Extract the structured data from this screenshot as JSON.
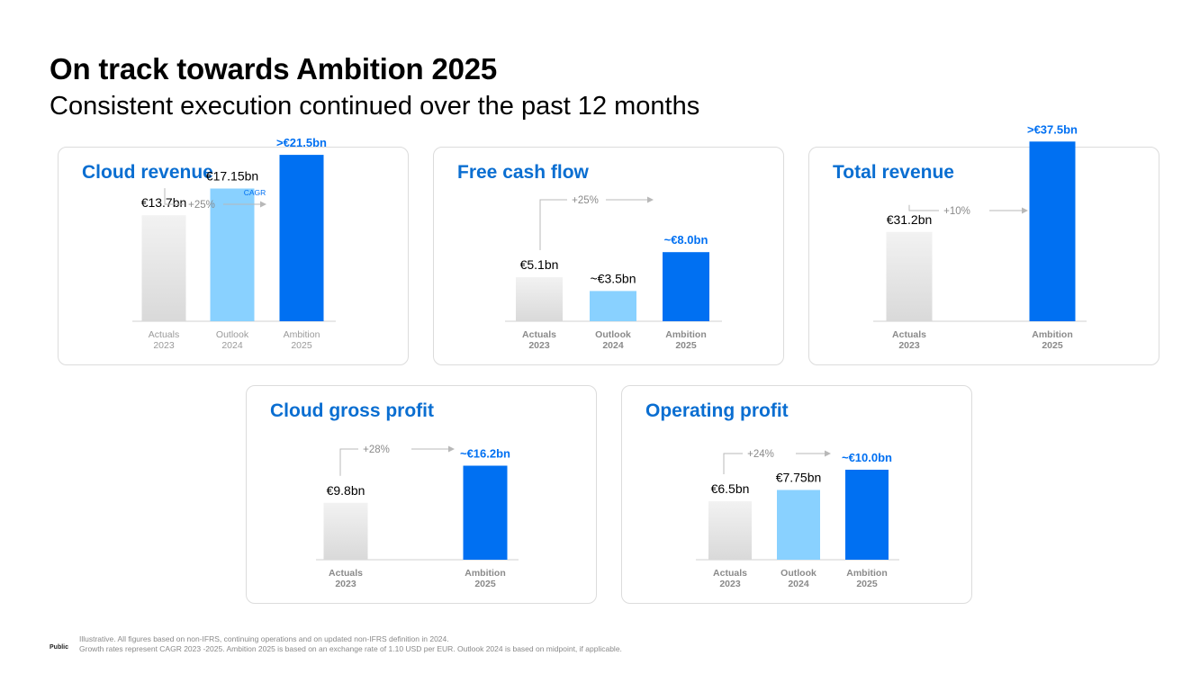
{
  "page": {
    "title": "On track towards Ambition 2025",
    "subtitle": "Consistent execution continued over the past 12 months"
  },
  "colors": {
    "accent": "#0a6ed1",
    "actuals_top": "#f2f2f2",
    "actuals_bottom": "#d9d9d9",
    "outlook": "#89d1ff",
    "ambition": "#0070f2",
    "axis": "#d0d0d0",
    "arrow": "#b8b8b8",
    "muted_label": "#9a9a9a",
    "bold_label": "#8a8a8a"
  },
  "chart_data": [
    {
      "type": "bar",
      "id": "cloud-revenue",
      "title": "Cloud revenue",
      "unit": "€bn",
      "categories": [
        [
          "Actuals",
          "2023"
        ],
        [
          "Outlook",
          "2024"
        ],
        [
          "Ambition",
          "2025"
        ]
      ],
      "values": [
        13.7,
        17.15,
        21.5
      ],
      "value_labels": [
        "€13.7bn",
        "€17.15bn",
        ">€21.5bn"
      ],
      "kinds": [
        "actual",
        "outlook",
        "ambition"
      ],
      "growth": "+25%",
      "growth_note": "CAGR",
      "category_style": "light"
    },
    {
      "type": "bar",
      "id": "free-cash-flow",
      "title": "Free cash flow",
      "unit": "€bn",
      "categories": [
        [
          "Actuals",
          "2023"
        ],
        [
          "Outlook",
          "2024"
        ],
        [
          "Ambition",
          "2025"
        ]
      ],
      "values": [
        5.1,
        3.5,
        8.0
      ],
      "value_labels": [
        "€5.1bn",
        "~€3.5bn",
        "~€8.0bn"
      ],
      "kinds": [
        "actual",
        "outlook",
        "ambition"
      ],
      "growth": "+25%",
      "category_style": "bold"
    },
    {
      "type": "bar",
      "id": "total-revenue",
      "title": "Total revenue",
      "unit": "€bn",
      "categories": [
        [
          "Actuals",
          "2023"
        ],
        [
          "Ambition",
          "2025"
        ]
      ],
      "values": [
        31.2,
        37.5
      ],
      "value_labels": [
        "€31.2bn",
        ">€37.5bn"
      ],
      "kinds": [
        "actual",
        "ambition"
      ],
      "growth": "+10%",
      "category_style": "bold"
    },
    {
      "type": "bar",
      "id": "cloud-gross-profit",
      "title": "Cloud gross profit",
      "unit": "€bn",
      "categories": [
        [
          "Actuals",
          "2023"
        ],
        [
          "Ambition",
          "2025"
        ]
      ],
      "values": [
        9.8,
        16.2
      ],
      "value_labels": [
        "€9.8bn",
        "~€16.2bn"
      ],
      "kinds": [
        "actual",
        "ambition"
      ],
      "growth": "+28%",
      "category_style": "bold"
    },
    {
      "type": "bar",
      "id": "operating-profit",
      "title": "Operating profit",
      "unit": "€bn",
      "categories": [
        [
          "Actuals",
          "2023"
        ],
        [
          "Outlook",
          "2024"
        ],
        [
          "Ambition",
          "2025"
        ]
      ],
      "values": [
        6.5,
        7.75,
        10.0
      ],
      "value_labels": [
        "€6.5bn",
        "€7.75bn",
        "~€10.0bn"
      ],
      "kinds": [
        "actual",
        "outlook",
        "ambition"
      ],
      "growth": "+24%",
      "category_style": "bold"
    }
  ],
  "footer": {
    "classification": "Public",
    "note_1": "Illustrative. All figures based on non-IFRS, continuing operations and on updated non-IFRS definition in 2024.",
    "note_2": "Growth rates represent CAGR 2023 -2025. Ambition 2025 is based on an exchange rate of 1.10 USD per EUR. Outlook 2024 is based on midpoint, if applicable."
  }
}
